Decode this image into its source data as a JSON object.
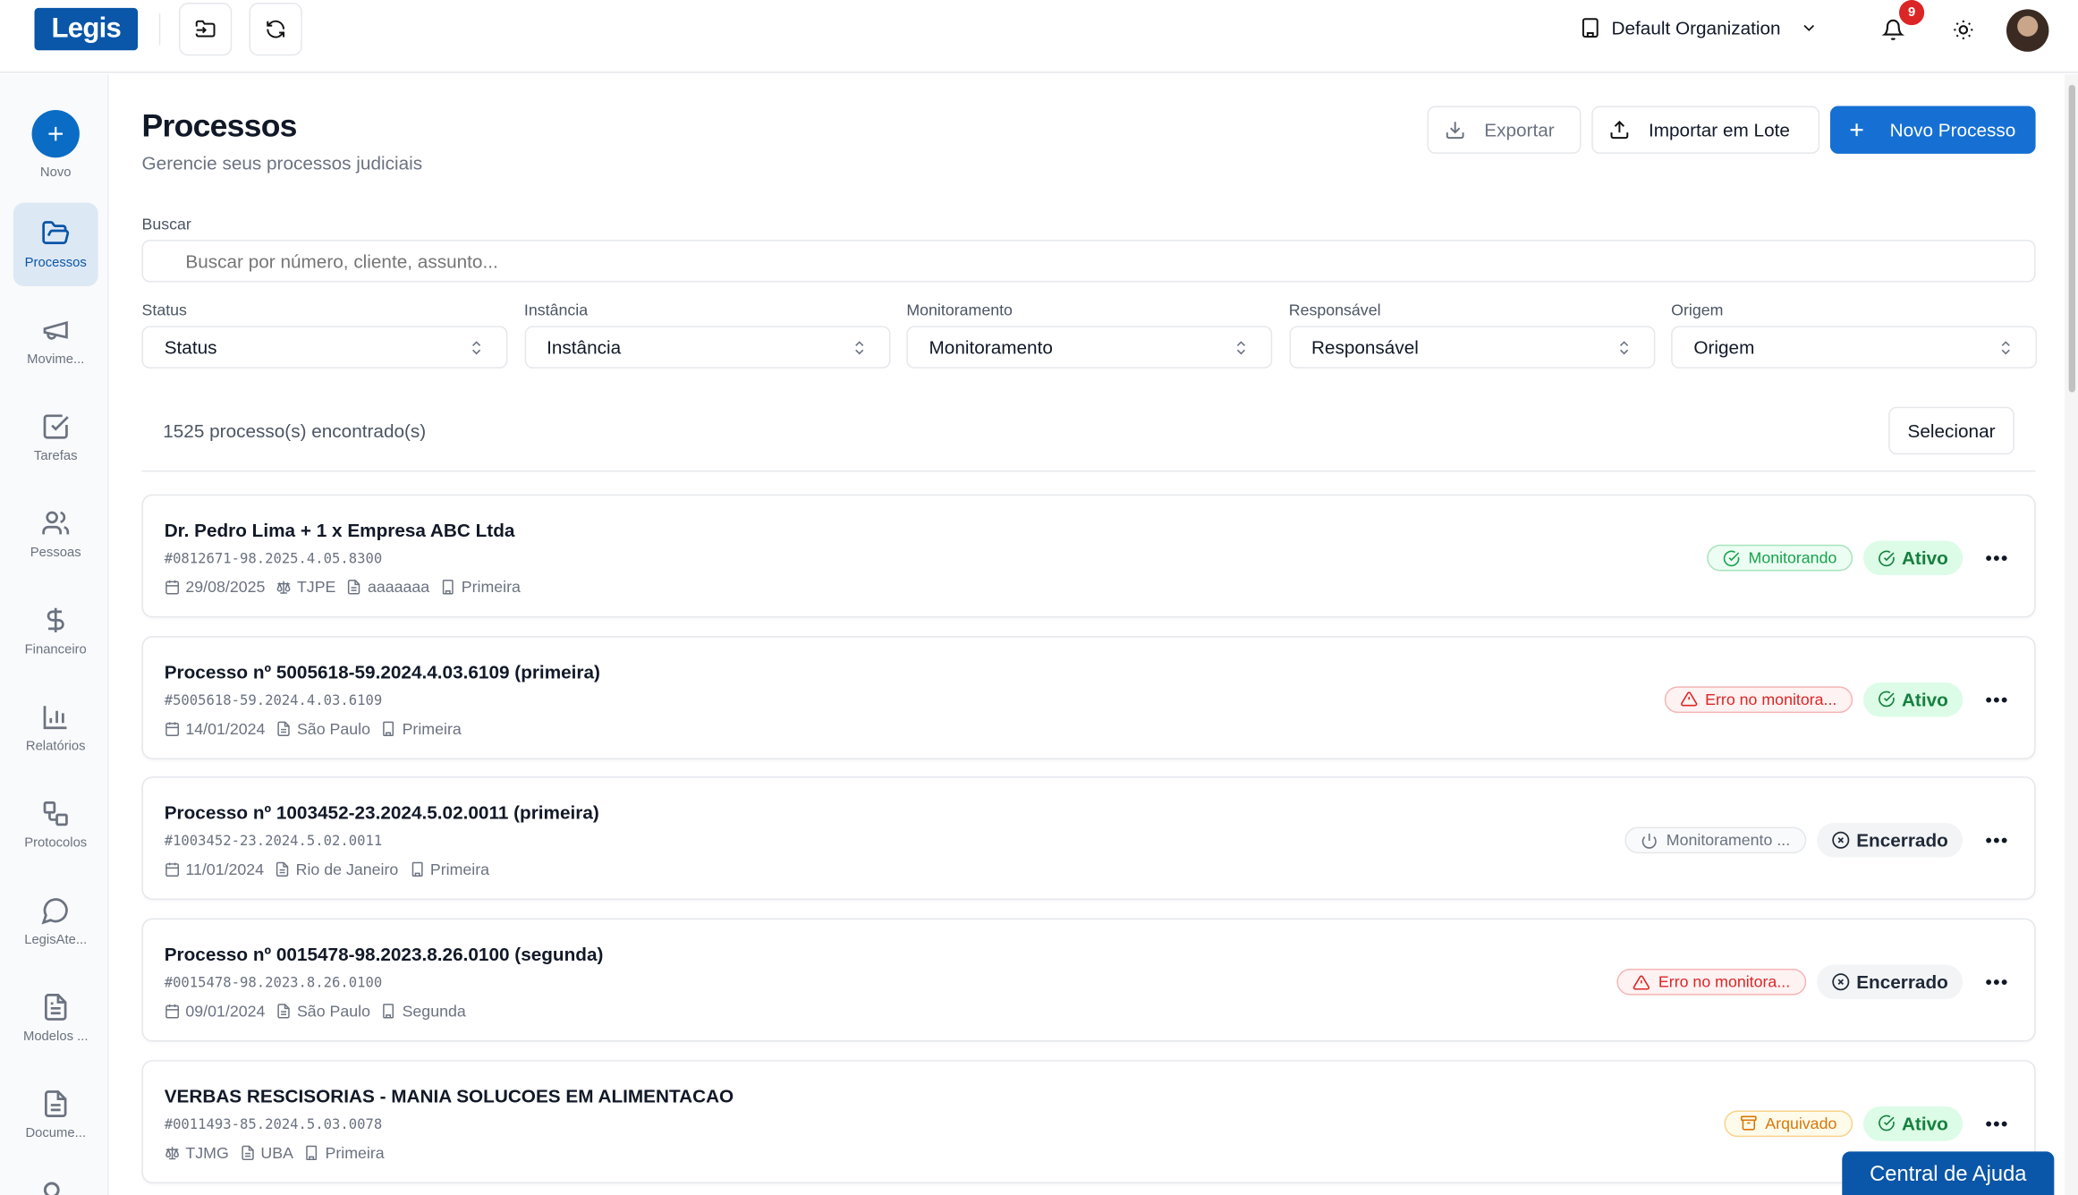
{
  "header": {
    "logo": "Legis",
    "organization": "Default Organization",
    "notifications": "9"
  },
  "sidebar": {
    "items": [
      {
        "label": "Novo",
        "icon": "plus-icon"
      },
      {
        "label": "Processos",
        "icon": "folder-icon"
      },
      {
        "label": "Movime...",
        "icon": "megaphone-icon"
      },
      {
        "label": "Tarefas",
        "icon": "checkbox-icon"
      },
      {
        "label": "Pessoas",
        "icon": "users-icon"
      },
      {
        "label": "Financeiro",
        "icon": "dollar-icon"
      },
      {
        "label": "Relatórios",
        "icon": "bar-chart-icon"
      },
      {
        "label": "Protocolos",
        "icon": "shapes-icon"
      },
      {
        "label": "LegisAte...",
        "icon": "chat-icon"
      },
      {
        "label": "Modelos ...",
        "icon": "file-icon"
      },
      {
        "label": "Docume...",
        "icon": "document-icon"
      }
    ]
  },
  "page": {
    "title": "Processos",
    "subtitle": "Gerencie seus processos judiciais",
    "export": "Exportar",
    "import": "Importar em Lote",
    "new": "Novo Processo"
  },
  "search": {
    "label": "Buscar",
    "placeholder": "Buscar por número, cliente, assunto..."
  },
  "filters": [
    {
      "label": "Status",
      "value": "Status"
    },
    {
      "label": "Instância",
      "value": "Instância"
    },
    {
      "label": "Monitoramento",
      "value": "Monitoramento"
    },
    {
      "label": "Responsável",
      "value": "Responsável"
    },
    {
      "label": "Origem",
      "value": "Origem"
    }
  ],
  "results": {
    "count": "1525 processo(s) encontrado(s)",
    "select": "Selecionar"
  },
  "colors": {
    "primary": "#0a56a8",
    "green": "#16a34a",
    "red": "#dc2626",
    "amber": "#d97706",
    "gray": "#6b7280"
  },
  "processes": [
    {
      "title": "Dr. Pedro Lima + 1 x Empresa ABC Ltda",
      "number": "#0812671-98.2025.4.05.8300",
      "date": "29/08/2025",
      "court": "TJPE",
      "subject": "aaaaaaa",
      "instance": "Primeira",
      "monitor": "Monitorando",
      "monitor_type": "ok",
      "status": "Ativo",
      "status_type": "active"
    },
    {
      "title": "Processo nº 5005618-59.2024.4.03.6109 (primeira)",
      "number": "#5005618-59.2024.4.03.6109",
      "date": "14/01/2024",
      "subject": "São Paulo",
      "instance": "Primeira",
      "monitor": "Erro no monitora...",
      "monitor_type": "error",
      "status": "Ativo",
      "status_type": "active"
    },
    {
      "title": "Processo nº 1003452-23.2024.5.02.0011 (primeira)",
      "number": "#1003452-23.2024.5.02.0011",
      "date": "11/01/2024",
      "subject": "Rio de Janeiro",
      "instance": "Primeira",
      "monitor": "Monitoramento ...",
      "monitor_type": "off",
      "status": "Encerrado",
      "status_type": "closed"
    },
    {
      "title": "Processo nº 0015478-98.2023.8.26.0100 (segunda)",
      "number": "#0015478-98.2023.8.26.0100",
      "date": "09/01/2024",
      "subject": "São Paulo",
      "instance": "Segunda",
      "monitor": "Erro no monitora...",
      "monitor_type": "error",
      "status": "Encerrado",
      "status_type": "closed"
    },
    {
      "title": "VERBAS RESCISORIAS - MANIA SOLUCOES EM ALIMENTACAO",
      "number": "#0011493-85.2024.5.03.0078",
      "court": "TJMG",
      "subject": "UBA",
      "instance": "Primeira",
      "monitor": "Arquivado",
      "monitor_type": "archived",
      "status": "Ativo",
      "status_type": "active"
    }
  ],
  "help": "Central de Ajuda"
}
